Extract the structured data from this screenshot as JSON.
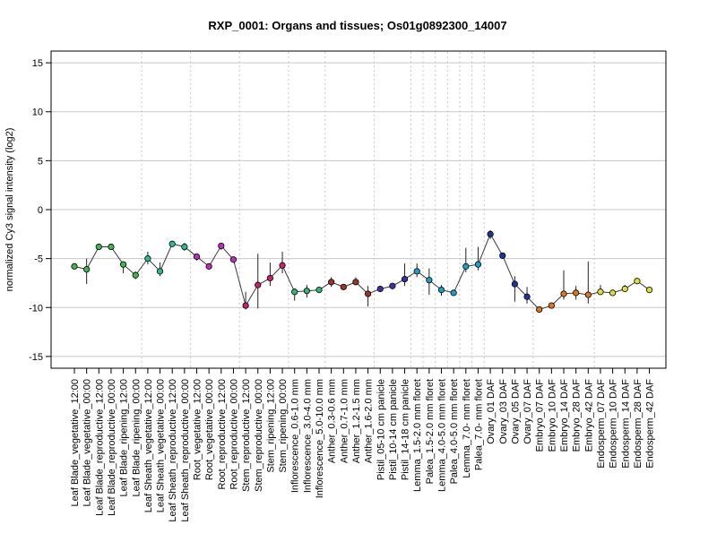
{
  "chart_data": {
    "type": "line",
    "title": "RXP_0001: Organs and tissues; Os01g0892300_14007",
    "ylabel": "normalized Cy3 signal intensity (log2)",
    "xlabel": "",
    "ylim": [
      -16.2,
      16.2
    ],
    "yticks": [
      -15,
      -10,
      -5,
      0,
      5,
      10,
      15
    ],
    "grid": true,
    "point_style": "filled-circle-with-error-bars",
    "line_color": "#3a3a3a",
    "grid_color": "#c8c8c8",
    "categories": [
      "Leaf Blade_vegetative_12:00",
      "Leaf Blade_vegetative_00:00",
      "Leaf Blade_reproductive_12:00",
      "Leaf Blade_reproductive_00:00",
      "Leaf Blade_ripening_12:00",
      "Leaf Blade_ripening_00:00",
      "Leaf Sheath_vegetative_12:00",
      "Leaf Sheath_vegetative_00:00",
      "Leaf Sheath_reproductive_12:00",
      "Leaf Sheath_reproductive_00:00",
      "Root_vegetative_12:00",
      "Root_vegetative_00:00",
      "Root_reproductive_12:00",
      "Root_reproductive_00:00",
      "Stem_reproductive_12:00",
      "Stem_reproductive_00:00",
      "Stem_ripening_12:00",
      "Stem_ripening_00:00",
      "Inflorescence_0.6-1.0 mm",
      "Inflorescence_3.0-4.0 mm",
      "Inflorescence_5.0-10.0 mm",
      "Anther_0.3-0.6 mm",
      "Anther_0.7-1.0 mm",
      "Anther_1.2-1.5 mm",
      "Anther_1.6-2.0 mm",
      "Pistil_05-10 cm panicle",
      "Pistil_10-14 cm panicle",
      "Pistil_14-18 cm panicle",
      "Lemma_1.5-2.0 mm floret",
      "Palea_1.5-2.0 mm floret",
      "Lemma_4.0-5.0 mm floret",
      "Palea_4.0-5.0 mm floret",
      "Lemma_7.0- mm floret",
      "Palea_7.0- mm floret",
      "Ovary_01 DAF",
      "Ovary_03 DAF",
      "Ovary_05 DAF",
      "Ovary_07 DAF",
      "Embryo_07 DAF",
      "Embryo_10 DAF",
      "Embryo_14 DAF",
      "Embryo_28 DAF",
      "Embryo_42 DAF",
      "Endosperm_07 DAF",
      "Endosperm_10 DAF",
      "Endosperm_14 DAF",
      "Endosperm_28 DAF",
      "Endosperm_42 DAF"
    ],
    "values": [
      -5.8,
      -6.1,
      -3.8,
      -3.8,
      -5.6,
      -6.7,
      -5.0,
      -6.3,
      -3.5,
      -3.8,
      -4.8,
      -5.8,
      -3.7,
      -5.1,
      -9.8,
      -7.7,
      -7.0,
      -5.7,
      -8.4,
      -8.3,
      -8.2,
      -7.4,
      -7.9,
      -7.4,
      -8.6,
      -8.1,
      -7.8,
      -7.1,
      -6.3,
      -7.2,
      -8.2,
      -8.5,
      -5.8,
      -5.6,
      -2.5,
      -4.7,
      -7.6,
      -8.9,
      -10.2,
      -9.8,
      -8.6,
      -8.5,
      -8.7,
      -8.4,
      -8.5,
      -8.1,
      -7.3,
      -8.2
    ],
    "errors": [
      [
        -5.9,
        -5.6
      ],
      [
        -7.6,
        -5.0
      ],
      [
        -3.9,
        -3.7
      ],
      [
        -3.9,
        -3.7
      ],
      [
        -6.5,
        -5.3
      ],
      [
        -7.1,
        -6.3
      ],
      [
        -5.6,
        -4.3
      ],
      [
        -6.8,
        -5.4
      ],
      [
        -3.6,
        -3.4
      ],
      [
        -4.2,
        -3.4
      ],
      [
        -5.2,
        -4.5
      ],
      [
        -6.1,
        -5.5
      ],
      [
        -4.1,
        -3.4
      ],
      [
        -5.4,
        -4.8
      ],
      [
        -10.2,
        -8.4
      ],
      [
        -10.1,
        -4.5
      ],
      [
        -7.8,
        -5.4
      ],
      [
        -6.5,
        -4.3
      ],
      [
        -9.3,
        -8.1
      ],
      [
        -9.0,
        -7.7
      ],
      [
        -8.4,
        -8.0
      ],
      [
        -7.9,
        -6.9
      ],
      [
        -8.1,
        -7.7
      ],
      [
        -7.7,
        -6.9
      ],
      [
        -9.9,
        -7.8
      ],
      [
        -8.4,
        -7.9
      ],
      [
        -8.0,
        -7.5
      ],
      [
        -7.8,
        -5.5
      ],
      [
        -6.9,
        -5.5
      ],
      [
        -8.7,
        -6.0
      ],
      [
        -8.8,
        -7.7
      ],
      [
        -8.8,
        -8.2
      ],
      [
        -6.4,
        -3.9
      ],
      [
        -6.2,
        -3.8
      ],
      [
        -3.0,
        -2.1
      ],
      [
        -5.0,
        -4.4
      ],
      [
        -9.4,
        -6.8
      ],
      [
        -9.6,
        -7.9
      ],
      [
        -10.4,
        -9.9
      ],
      [
        -10.0,
        -9.5
      ],
      [
        -9.2,
        -6.2
      ],
      [
        -9.2,
        -7.8
      ],
      [
        -9.6,
        -5.3
      ],
      [
        -8.7,
        -7.7
      ],
      [
        -8.7,
        -8.3
      ],
      [
        -8.4,
        -7.7
      ],
      [
        -7.5,
        -7.0
      ],
      [
        -8.4,
        -7.9
      ]
    ],
    "point_colors": [
      "#3cb84a",
      "#3cb84a",
      "#3cb84a",
      "#3cb84a",
      "#3cb84a",
      "#3cb84a",
      "#26c18a",
      "#26c18a",
      "#26c18a",
      "#26c18a",
      "#c528c2",
      "#c528c2",
      "#c528c2",
      "#c528c2",
      "#cc1f6e",
      "#cc1f6e",
      "#cc1f6e",
      "#cc1f6e",
      "#2fb578",
      "#2fb578",
      "#2fb578",
      "#a0322a",
      "#a0322a",
      "#a0322a",
      "#a0322a",
      "#3e2fb0",
      "#3e2fb0",
      "#3e2fb0",
      "#1b9ec9",
      "#1b9ec9",
      "#1b9ec9",
      "#1b9ec9",
      "#1b9ec9",
      "#1b9ec9",
      "#1c33a8",
      "#1c33a8",
      "#1c33a8",
      "#1c33a8",
      "#e0751f",
      "#e0751f",
      "#e0751f",
      "#e0751f",
      "#e0751f",
      "#dede38",
      "#dede38",
      "#dede38",
      "#dede38",
      "#dede38"
    ]
  }
}
